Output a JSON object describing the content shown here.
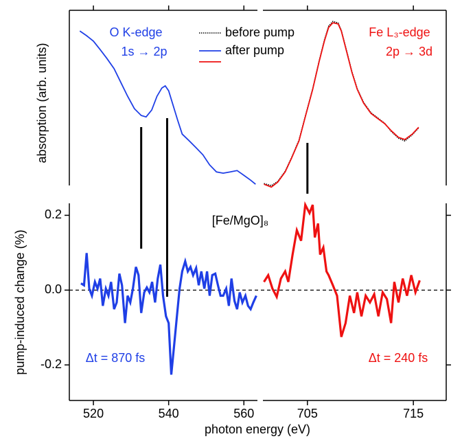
{
  "chart_data": {
    "type": "line",
    "xlabel": "photon energy (eV)",
    "x_segments": [
      {
        "xlim": [
          513.6,
          563.6
        ],
        "xticks": [
          520,
          540,
          560
        ]
      },
      {
        "xlim": [
          700.8,
          718.1
        ],
        "xticks": [
          705,
          715
        ]
      }
    ],
    "top": {
      "ylabel": "absorption (arb. units)",
      "ylim": [
        -0.05,
        1.0
      ],
      "series": [
        {
          "name": "after pump",
          "color": "#1f3fe6",
          "segment": 0,
          "x": [
            516.4,
            518.2,
            520,
            521.8,
            523.6,
            525.5,
            527.3,
            529.1,
            530.9,
            532.7,
            534.0,
            535.5,
            536.9,
            538.2,
            539.1,
            540.0,
            540.9,
            542.4,
            543.6,
            545.5,
            547.3,
            549.1,
            550.9,
            552.7,
            554.5,
            556.4,
            558.2,
            560,
            561.8,
            563.1
          ],
          "values": [
            0.882,
            0.855,
            0.824,
            0.776,
            0.725,
            0.667,
            0.588,
            0.51,
            0.439,
            0.4,
            0.392,
            0.431,
            0.51,
            0.557,
            0.569,
            0.541,
            0.478,
            0.373,
            0.294,
            0.255,
            0.216,
            0.176,
            0.118,
            0.078,
            0.071,
            0.078,
            0.086,
            0.059,
            0.031,
            0.008
          ]
        },
        {
          "name": "before pump",
          "color": "#000000",
          "dash": true,
          "segment": 1,
          "x": [
            700.9,
            701.6,
            702.2,
            702.9,
            703.5,
            704.2,
            704.8,
            705.5,
            706.1,
            706.6,
            707.0,
            707.4,
            707.9,
            708.2,
            708.7,
            709.2,
            709.7,
            710.3,
            711.0,
            711.6,
            712.3,
            712.9,
            713.6,
            714.2,
            714.9,
            715.5
          ],
          "values": [
            0.012,
            0.0,
            0.024,
            0.082,
            0.16,
            0.259,
            0.396,
            0.553,
            0.71,
            0.83,
            0.91,
            0.937,
            0.928,
            0.886,
            0.77,
            0.651,
            0.553,
            0.475,
            0.416,
            0.388,
            0.355,
            0.31,
            0.27,
            0.255,
            0.29,
            0.33
          ]
        },
        {
          "color": "#ee1111",
          "segment": 1,
          "x": [
            700.9,
            701.6,
            702.2,
            702.9,
            703.5,
            704.2,
            704.8,
            705.5,
            706.1,
            706.6,
            707.0,
            707.4,
            707.9,
            708.2,
            708.7,
            709.2,
            709.7,
            710.3,
            711.0,
            711.6,
            712.3,
            712.9,
            713.6,
            714.2,
            714.9,
            715.5
          ],
          "values": [
            0.008,
            -0.008,
            0.02,
            0.078,
            0.157,
            0.255,
            0.392,
            0.549,
            0.706,
            0.824,
            0.902,
            0.929,
            0.922,
            0.882,
            0.765,
            0.647,
            0.549,
            0.471,
            0.412,
            0.384,
            0.353,
            0.314,
            0.275,
            0.263,
            0.294,
            0.333
          ]
        }
      ]
    },
    "bottom": {
      "ylabel": "pump-induced change (%)",
      "ylim": [
        -0.295,
        0.232
      ],
      "yticks": [
        0.2,
        {
          "value": 0,
          "label": "0.0"
        },
        -0.2
      ],
      "zero_line": true,
      "series": [
        {
          "color": "#1f3fe6",
          "segment": 0,
          "x": [
            516.7,
            517.5,
            518.2,
            518.9,
            519.6,
            520.4,
            521.1,
            521.8,
            522.5,
            523.3,
            524.0,
            524.7,
            525.5,
            526.2,
            526.9,
            527.6,
            528.4,
            529.1,
            529.8,
            530.5,
            531.3,
            532.0,
            532.7,
            533.5,
            534.2,
            534.9,
            535.6,
            536.4,
            537.1,
            537.8,
            538.5,
            539.3,
            540.0,
            540.7,
            541.5,
            542.2,
            542.9,
            543.6,
            544.4,
            545.1,
            545.8,
            546.5,
            547.3,
            548.0,
            548.7,
            549.5,
            550.2,
            550.9,
            551.6,
            552.4,
            553.1,
            553.8,
            554.5,
            555.3,
            556.0,
            556.7,
            557.5,
            558.2,
            558.9,
            559.6,
            560.4,
            561.1,
            561.8,
            562.5,
            563.3
          ],
          "values": [
            0.018,
            0.013,
            0.099,
            0.004,
            -0.015,
            0.022,
            0.004,
            0.031,
            -0.042,
            0.004,
            -0.015,
            0.022,
            -0.051,
            -0.033,
            0.044,
            0.013,
            -0.088,
            -0.015,
            -0.033,
            0.004,
            0.062,
            0.04,
            -0.061,
            -0.006,
            0.007,
            -0.006,
            0.022,
            -0.033,
            0.031,
            0.068,
            -0.015,
            -0.07,
            -0.088,
            -0.226,
            -0.143,
            -0.07,
            0.004,
            0.05,
            0.077,
            0.05,
            0.062,
            0.04,
            0.059,
            0.013,
            0.05,
            0.004,
            0.05,
            -0.015,
            0.04,
            0.044,
            0.013,
            -0.015,
            -0.015,
            0.004,
            -0.042,
            0.031,
            -0.029,
            -0.051,
            -0.006,
            -0.033,
            -0.015,
            -0.042,
            -0.051,
            -0.033,
            -0.015
          ]
        },
        {
          "color": "#ee1111",
          "segment": 1,
          "x": [
            700.9,
            701.3,
            701.7,
            702.1,
            702.5,
            702.9,
            703.2,
            703.6,
            704.0,
            704.4,
            704.8,
            705.2,
            705.5,
            705.7,
            706.0,
            706.2,
            706.5,
            706.8,
            707.0,
            707.4,
            707.8,
            708.2,
            708.6,
            709.0,
            709.4,
            709.7,
            710.1,
            710.5,
            710.9,
            711.3,
            711.7,
            712.1,
            712.5,
            712.9,
            713.2,
            713.6,
            714.0,
            714.4,
            714.8,
            715.2,
            715.6
          ],
          "values": [
            0.022,
            0.04,
            0.004,
            -0.018,
            0.031,
            0.05,
            0.022,
            0.095,
            0.16,
            0.132,
            0.228,
            0.206,
            0.228,
            0.141,
            0.178,
            0.095,
            0.114,
            0.05,
            0.04,
            0.013,
            -0.015,
            -0.125,
            -0.088,
            -0.015,
            -0.061,
            -0.006,
            -0.07,
            -0.015,
            -0.033,
            -0.011,
            -0.07,
            -0.006,
            -0.024,
            -0.088,
            0.022,
            -0.033,
            0.031,
            -0.015,
            0.04,
            -0.006,
            0.026
          ]
        }
      ]
    },
    "markers": [
      {
        "segment": 0,
        "x": 532.7
      },
      {
        "segment": 0,
        "x": 539.6
      },
      {
        "segment": 1,
        "x": 705.0
      }
    ],
    "annotations": {
      "o_edge": "O K-edge",
      "o_transition": "1s → 2p",
      "fe_edge": "Fe L₃-edge",
      "fe_transition": "2p → 3d",
      "sample": "[Fe/MgO]₈",
      "dt_left": "Δt = 870 fs",
      "dt_right": "Δt = 240 fs"
    }
  }
}
